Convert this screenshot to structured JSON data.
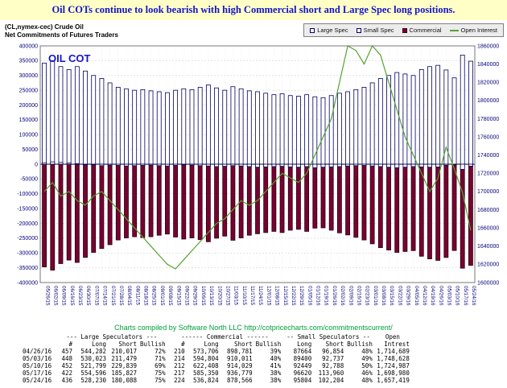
{
  "banner": {
    "title": "Oil COTs continue to look bearish with high Commercial short and Large Spec long positions."
  },
  "chart_header": {
    "instrument": "(CL,nymex-cec) Crude Oil",
    "subtitle": "Net Commitments of Futures Traders"
  },
  "legend": [
    {
      "key": "large-spec",
      "label": "Large Spec"
    },
    {
      "key": "small-spec",
      "label": "Small Spec"
    },
    {
      "key": "commercial",
      "label": "Commercial"
    },
    {
      "key": "open-interest",
      "label": "Open Interest"
    }
  ],
  "overlay_label": "OIL COT",
  "colors": {
    "banner_bg": "#ffffc6",
    "title_text": "#1414cc",
    "large_spec_fill": "#ffffff",
    "large_spec_border": "#000066",
    "commercial_fill": "#7a0030",
    "commercial_border": "#220010",
    "open_interest_line": "#55a232",
    "axis_text": "#00007a",
    "credit_text": "#00a13a"
  },
  "chart_data": {
    "type": "bar",
    "title": "Net Commitments of Futures Traders",
    "legend_position": "top-right",
    "grid": true,
    "left_axis": {
      "min": -400000,
      "max": 400000,
      "step": 50000
    },
    "right_axis": {
      "min": 1600000,
      "max": 1860000,
      "step": 20000
    },
    "categories": [
      "05/26/15",
      "06/02/15",
      "06/09/15",
      "06/16/15",
      "06/23/15",
      "06/30/15",
      "07/07/15",
      "07/14/15",
      "07/21/15",
      "07/28/15",
      "08/04/15",
      "08/11/15",
      "08/18/15",
      "08/25/15",
      "09/01/15",
      "09/08/15",
      "09/15/15",
      "09/22/15",
      "09/29/15",
      "10/06/15",
      "10/13/15",
      "10/20/15",
      "10/27/15",
      "11/03/15",
      "11/10/15",
      "11/17/15",
      "11/24/15",
      "12/01/15",
      "12/08/15",
      "12/15/15",
      "12/22/15",
      "12/29/15",
      "01/05/16",
      "01/12/16",
      "01/19/16",
      "01/26/16",
      "02/02/16",
      "02/09/16",
      "02/16/16",
      "02/23/16",
      "03/01/16",
      "03/08/16",
      "03/15/16",
      "03/22/16",
      "03/29/16",
      "04/05/16",
      "04/12/16",
      "04/19/16",
      "04/26/16",
      "05/03/16",
      "05/10/16",
      "05/17/16",
      "05/24/16"
    ],
    "series": [
      {
        "name": "Large Spec",
        "type": "bar",
        "axis": "left",
        "values": [
          342000,
          350000,
          330000,
          320000,
          330000,
          315000,
          300000,
          290000,
          275000,
          260000,
          255000,
          250000,
          252000,
          248000,
          245000,
          242000,
          250000,
          255000,
          252000,
          260000,
          268000,
          258000,
          250000,
          262000,
          255000,
          248000,
          245000,
          240000,
          235000,
          238000,
          232000,
          230000,
          235000,
          228000,
          225000,
          232000,
          240000,
          245000,
          252000,
          260000,
          275000,
          290000,
          300000,
          310000,
          305000,
          300000,
          320000,
          330000,
          334265,
          318544,
          291960,
          368769,
          348142
        ]
      },
      {
        "name": "Small Spec",
        "type": "bar",
        "axis": "left",
        "values": [
          5000,
          8000,
          6000,
          4000,
          2000,
          0,
          -2000,
          -5000,
          -3000,
          -4000,
          -6000,
          -5000,
          -4000,
          -3000,
          -5000,
          -6000,
          -4000,
          -2000,
          -3000,
          -5000,
          -6000,
          -8000,
          -7000,
          -5000,
          -6000,
          -8000,
          -10000,
          -9000,
          -8000,
          -7000,
          -9000,
          -10000,
          -8000,
          -12000,
          -10000,
          -9000,
          -8000,
          -6000,
          -5000,
          -4000,
          -6000,
          -8000,
          -10000,
          -12000,
          -10000,
          -8000,
          -9000,
          -10000,
          -9190,
          -3337,
          -339,
          -17340,
          -6400
        ]
      },
      {
        "name": "Commercial",
        "type": "bar",
        "axis": "left",
        "values": [
          -347000,
          -358000,
          -336000,
          -324000,
          -332000,
          -315000,
          -298000,
          -285000,
          -272000,
          -256000,
          -249000,
          -245000,
          -248000,
          -245000,
          -240000,
          -236000,
          -246000,
          -253000,
          -249000,
          -255000,
          -262000,
          -250000,
          -243000,
          -257000,
          -249000,
          -240000,
          -235000,
          -231000,
          -227000,
          -231000,
          -223000,
          -220000,
          -227000,
          -216000,
          -215000,
          -223000,
          -232000,
          -239000,
          -247000,
          -256000,
          -269000,
          -282000,
          -290000,
          -298000,
          -295000,
          -292000,
          -311000,
          -320000,
          -325075,
          -315207,
          -291621,
          -351429,
          -341742
        ]
      },
      {
        "name": "Open Interest",
        "type": "line",
        "axis": "right",
        "values": [
          1700000,
          1710000,
          1695000,
          1700000,
          1690000,
          1685000,
          1695000,
          1700000,
          1690000,
          1680000,
          1670000,
          1660000,
          1650000,
          1640000,
          1630000,
          1620000,
          1615000,
          1625000,
          1635000,
          1645000,
          1655000,
          1665000,
          1670000,
          1680000,
          1690000,
          1685000,
          1690000,
          1700000,
          1710000,
          1720000,
          1715000,
          1710000,
          1720000,
          1740000,
          1760000,
          1780000,
          1820000,
          1860000,
          1855000,
          1840000,
          1860000,
          1850000,
          1820000,
          1790000,
          1760000,
          1740000,
          1720000,
          1700000,
          1714689,
          1748628,
          1724987,
          1698980,
          1657419
        ]
      }
    ]
  },
  "footer": {
    "credit": "Charts compiled by Software North LLC  http://cotpricecharts.com/commitmentscurrent/"
  },
  "table": {
    "groups": [
      {
        "label": "",
        "span": 1
      },
      {
        "label": "--- Large Speculators ---",
        "span": 4
      },
      {
        "label": "------ Commercial ------",
        "span": 4
      },
      {
        "label": "-- Small Speculators --",
        "span": 3
      },
      {
        "label": "Open",
        "span": 1
      }
    ],
    "columns": [
      "",
      "#",
      "Long",
      "Short",
      "Bullish",
      "#",
      "Long",
      "Short",
      "Bullish",
      "Long",
      "Short",
      "Bullish",
      "Intrest"
    ],
    "rows": [
      [
        "04/26/16",
        "457",
        "544,282",
        "210,017",
        "72%",
        "210",
        "573,706",
        "898,781",
        "39%",
        "87664",
        "96,854",
        "48%",
        "1,714,689"
      ],
      [
        "05/03/16",
        "448",
        "530,023",
        "211,479",
        "71%",
        "214",
        "594,804",
        "910,011",
        "40%",
        "89400",
        "92,737",
        "49%",
        "1,748,628"
      ],
      [
        "05/10/16",
        "452",
        "521,799",
        "229,839",
        "69%",
        "212",
        "622,408",
        "914,029",
        "41%",
        "92449",
        "92,788",
        "50%",
        "1,724,987"
      ],
      [
        "05/17/16",
        "422",
        "554,596",
        "185,827",
        "75%",
        "217",
        "585,350",
        "936,779",
        "38%",
        "96620",
        "113,960",
        "46%",
        "1,698,980"
      ],
      [
        "05/24/16",
        "436",
        "528,230",
        "180,088",
        "75%",
        "224",
        "536,824",
        "878,566",
        "38%",
        "95804",
        "102,204",
        "48%",
        "1,657,419"
      ]
    ]
  }
}
